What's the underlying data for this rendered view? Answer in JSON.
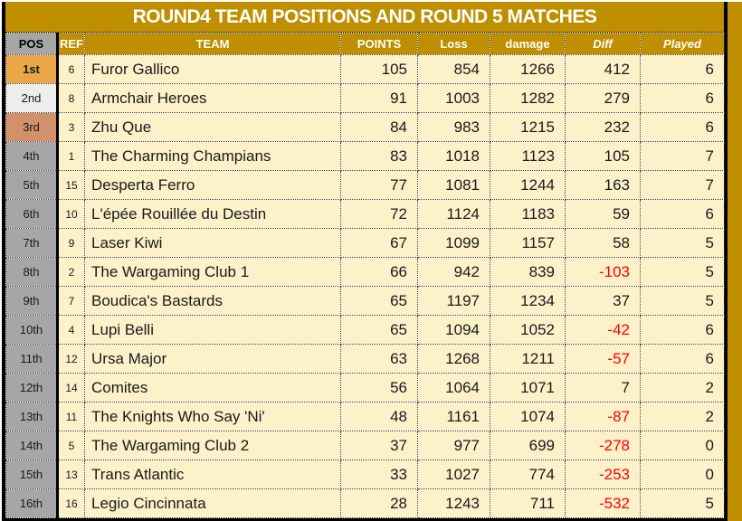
{
  "title": "ROUND4 TEAM POSITIONS AND ROUND 5 MATCHES",
  "columns": [
    "POS",
    "REF",
    "TEAM",
    "POINTS",
    "Loss",
    "damage",
    "Diff",
    "Played"
  ],
  "rows": [
    {
      "pos": "1st",
      "ref": 6,
      "team": "Furor Gallico",
      "points": 105,
      "loss": 854,
      "damage": 1266,
      "diff": 412,
      "played": 6
    },
    {
      "pos": "2nd",
      "ref": 8,
      "team": "Armchair Heroes",
      "points": 91,
      "loss": 1003,
      "damage": 1282,
      "diff": 279,
      "played": 6
    },
    {
      "pos": "3rd",
      "ref": 3,
      "team": "Zhu Que",
      "points": 84,
      "loss": 983,
      "damage": 1215,
      "diff": 232,
      "played": 6
    },
    {
      "pos": "4th",
      "ref": 1,
      "team": "The Charming Champians",
      "points": 83,
      "loss": 1018,
      "damage": 1123,
      "diff": 105,
      "played": 7
    },
    {
      "pos": "5th",
      "ref": 15,
      "team": "Desperta Ferro",
      "points": 77,
      "loss": 1081,
      "damage": 1244,
      "diff": 163,
      "played": 7
    },
    {
      "pos": "6th",
      "ref": 10,
      "team": "L'épée Rouillée du Destin",
      "points": 72,
      "loss": 1124,
      "damage": 1183,
      "diff": 59,
      "played": 6
    },
    {
      "pos": "7th",
      "ref": 9,
      "team": "Laser Kiwi",
      "points": 67,
      "loss": 1099,
      "damage": 1157,
      "diff": 58,
      "played": 5
    },
    {
      "pos": "8th",
      "ref": 2,
      "team": "The Wargaming Club 1",
      "points": 66,
      "loss": 942,
      "damage": 839,
      "diff": -103,
      "played": 5
    },
    {
      "pos": "9th",
      "ref": 7,
      "team": "Boudica's Bastards",
      "points": 65,
      "loss": 1197,
      "damage": 1234,
      "diff": 37,
      "played": 5
    },
    {
      "pos": "10th",
      "ref": 4,
      "team": "Lupi Belli",
      "points": 65,
      "loss": 1094,
      "damage": 1052,
      "diff": -42,
      "played": 6
    },
    {
      "pos": "11th",
      "ref": 12,
      "team": "Ursa Major",
      "points": 63,
      "loss": 1268,
      "damage": 1211,
      "diff": -57,
      "played": 6
    },
    {
      "pos": "12th",
      "ref": 14,
      "team": "Comites",
      "points": 56,
      "loss": 1064,
      "damage": 1071,
      "diff": 7,
      "played": 2
    },
    {
      "pos": "13th",
      "ref": 11,
      "team": "The Knights Who Say 'Ni'",
      "points": 48,
      "loss": 1161,
      "damage": 1074,
      "diff": -87,
      "played": 2
    },
    {
      "pos": "14th",
      "ref": 5,
      "team": "The Wargaming Club 2",
      "points": 37,
      "loss": 977,
      "damage": 699,
      "diff": -278,
      "played": 0
    },
    {
      "pos": "15th",
      "ref": 13,
      "team": "Trans Atlantic",
      "points": 33,
      "loss": 1027,
      "damage": 774,
      "diff": -253,
      "played": 0
    },
    {
      "pos": "16th",
      "ref": 16,
      "team": "Legio Cincinnata",
      "points": 28,
      "loss": 1243,
      "damage": 711,
      "diff": -532,
      "played": 5
    }
  ],
  "colors": {
    "header_gold": "#BF8F00",
    "cell_cream": "#FDF1CA",
    "pos_gray": "#A6A6A6",
    "rank_gold": "#EBA648",
    "rank_silver": "#EDEDED",
    "rank_bronze": "#D2906B",
    "negative_red": "#FF0000"
  }
}
